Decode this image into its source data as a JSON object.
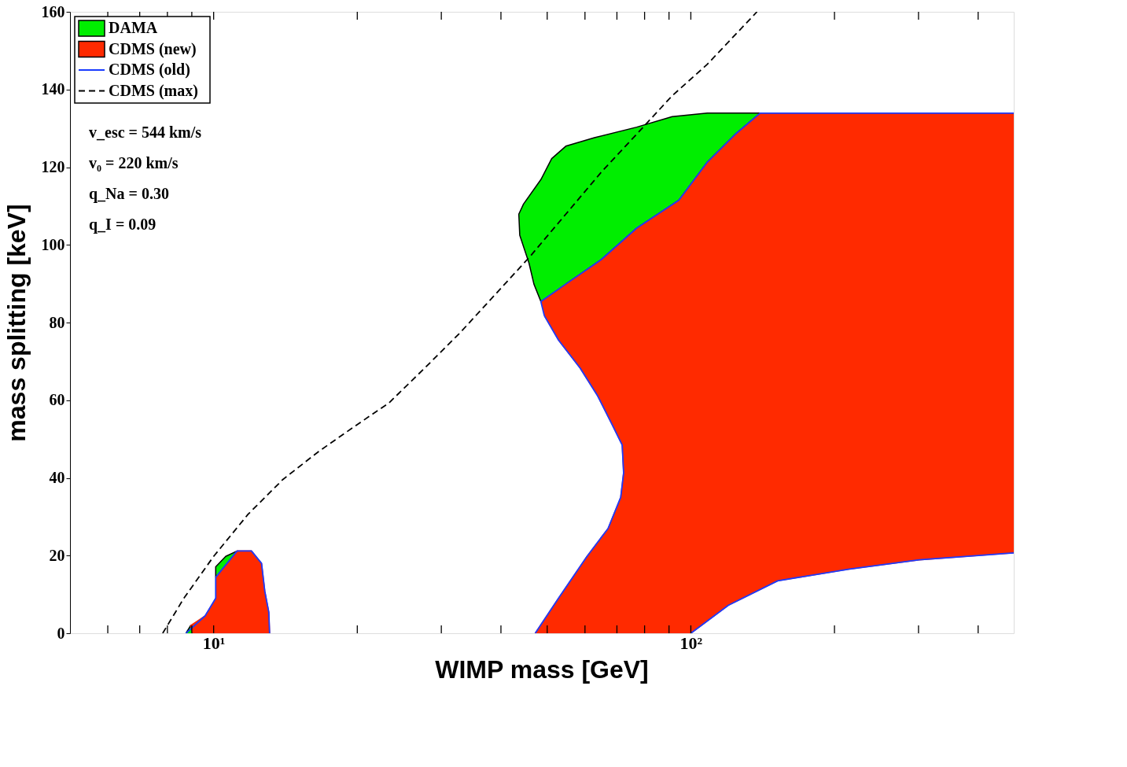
{
  "chart_data": {
    "type": "area",
    "xlabel": "WIMP mass [GeV]",
    "ylabel": "mass splitting [keV]",
    "log": "x",
    "xlim": [
      5,
      475
    ],
    "ylim": [
      0,
      160
    ],
    "xticks": [
      {
        "value": 6,
        "label": null
      },
      {
        "value": 7,
        "label": null
      },
      {
        "value": 8,
        "label": null
      },
      {
        "value": 9,
        "label": null
      },
      {
        "value": 10,
        "label": "10¹"
      },
      {
        "value": 20,
        "label": null
      },
      {
        "value": 30,
        "label": null
      },
      {
        "value": 40,
        "label": null
      },
      {
        "value": 50,
        "label": null
      },
      {
        "value": 60,
        "label": null
      },
      {
        "value": 70,
        "label": null
      },
      {
        "value": 80,
        "label": null
      },
      {
        "value": 90,
        "label": null
      },
      {
        "value": 100,
        "label": "10²"
      },
      {
        "value": 200,
        "label": null
      },
      {
        "value": 300,
        "label": null
      },
      {
        "value": 400,
        "label": null
      }
    ],
    "yticks": [
      0,
      20,
      40,
      60,
      80,
      100,
      120,
      140,
      160
    ],
    "grid": false,
    "legend": "top left",
    "annotations": [
      "v_esc = 544 km/s",
      "v₀ = 220 km/s",
      "q_Na = 0.30",
      "q_I = 0.09"
    ],
    "series": [
      {
        "name": "DAMA",
        "color": "#00ee00",
        "x": [
          48.5,
          46.9,
          45.8,
          43.8,
          43.6,
          44.6,
          48.5,
          51.1,
          54.7,
          62.8,
          77,
          91.4,
          108.3,
          139.7,
          124,
          108.3,
          94.4,
          77,
          64.9,
          54.7,
          null,
          10.1,
          10.1,
          10.6,
          11.2,
          null,
          8.75,
          8.95,
          9.05
        ],
        "values": [
          85.4,
          89.9,
          95.3,
          102.5,
          107.9,
          110.5,
          116.8,
          122.2,
          125.4,
          127.6,
          130.3,
          133,
          133.9,
          133.9,
          128.5,
          121.3,
          111.5,
          104.3,
          96.2,
          89.9,
          null,
          14.4,
          17.1,
          19.8,
          21.2,
          null,
          0,
          2,
          0
        ]
      },
      {
        "name": "CDMS (new)",
        "color": "#ff2a00",
        "x": [
          48.5,
          54.7,
          64.9,
          77,
          94.4,
          108.3,
          124,
          139.7,
          475,
          475,
          301,
          214,
          152,
          119.8,
          100,
          47.2,
          52.8,
          60.6,
          67.1,
          71.3,
          72.3,
          71.8,
          68.3,
          63.8,
          58.6,
          52.8,
          49.3,
          null,
          10.1,
          11.2,
          12,
          12.6,
          12.8,
          13.05,
          13.1,
          9.05,
          8.95,
          9.6,
          10.1
        ],
        "values": [
          85.4,
          89.9,
          96.2,
          104.3,
          111.5,
          121.3,
          128.5,
          133.9,
          133.9,
          20.7,
          18.9,
          16.5,
          13.5,
          7.2,
          0,
          0,
          9,
          19.8,
          27,
          35,
          41.3,
          48.5,
          53.9,
          61.1,
          68.3,
          75.5,
          81.8,
          null,
          14.4,
          21.2,
          21.2,
          18,
          10.8,
          5.4,
          0,
          0,
          2,
          4.5,
          9
        ]
      },
      {
        "name": "CDMS (old)",
        "type": "line",
        "color": "#1a3cff",
        "line_style": "solid",
        "x": [
          49.3,
          48.5,
          54.7,
          64.9,
          77,
          94.4,
          108.3,
          124,
          139.7,
          475,
          null,
          475,
          301,
          214,
          152,
          119.8,
          100,
          null,
          47.2,
          52.8,
          60.6,
          67.1,
          71.3,
          72.3,
          71.8,
          68.3,
          63.8,
          58.6,
          52.8,
          49.3,
          null,
          10.1,
          11.2,
          12,
          12.6,
          12.8,
          13.05,
          13.1,
          null,
          8.75,
          9.6,
          10.1,
          10.1
        ],
        "values": [
          81.8,
          85.4,
          89.9,
          96.2,
          104.3,
          111.5,
          121.3,
          128.5,
          133.9,
          133.9,
          null,
          20.7,
          18.9,
          16.5,
          13.5,
          7.2,
          0,
          null,
          0,
          9,
          19.8,
          27,
          35,
          41.3,
          48.5,
          53.9,
          61.1,
          68.3,
          75.5,
          81.8,
          null,
          14.4,
          21.2,
          21.2,
          18,
          10.8,
          5.4,
          0,
          null,
          0,
          4.5,
          9,
          14.4
        ]
      },
      {
        "name": "CDMS (max)",
        "type": "line",
        "color": "#000000",
        "line_style": "dashed",
        "x": [
          7.82,
          8.66,
          10,
          11.8,
          13.97,
          16.6,
          19.6,
          23.3,
          27.7,
          32.8,
          38.9,
          46.1,
          54.7,
          64.9,
          77,
          91.4,
          108.3,
          137.6
        ],
        "values": [
          0,
          9,
          19.8,
          30.6,
          39.6,
          46.8,
          53,
          59.3,
          68.3,
          77.3,
          87.2,
          97.1,
          107.9,
          118.7,
          128.5,
          138.4,
          146.5,
          160
        ]
      }
    ]
  }
}
